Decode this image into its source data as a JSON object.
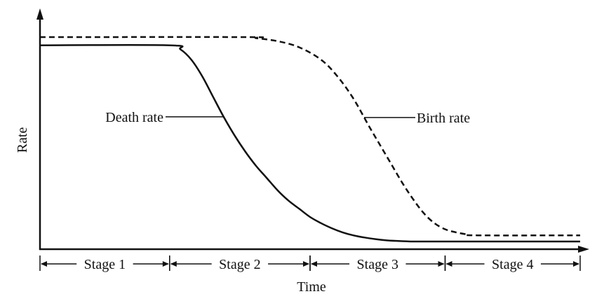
{
  "chart_data": {
    "type": "line",
    "title": "",
    "xlabel": "Time",
    "ylabel": "Rate",
    "xlim": [
      0,
      100
    ],
    "ylim": [
      0,
      100
    ],
    "grid": false,
    "legend": "none",
    "series": [
      {
        "name": "Death rate",
        "style": "solid",
        "color": "#111111",
        "x": [
          0,
          24,
          26,
          28,
          30,
          32,
          34,
          36,
          38,
          40,
          42,
          44,
          46,
          48,
          50,
          52,
          54,
          56,
          58,
          60,
          62,
          64,
          66,
          68,
          70,
          80,
          90,
          100
        ],
        "y": [
          96,
          96,
          94,
          89,
          81,
          71,
          61,
          52,
          44,
          37,
          31,
          25,
          20,
          16,
          12,
          9,
          6.5,
          4.5,
          3,
          2,
          1.2,
          0.6,
          0.3,
          0.1,
          0,
          0,
          0,
          0
        ]
      },
      {
        "name": "Birth rate",
        "style": "dashed",
        "color": "#111111",
        "x": [
          0,
          38,
          40,
          44,
          48,
          52,
          55,
          58,
          61,
          63,
          65,
          67,
          69,
          71,
          73,
          75,
          77,
          79,
          81,
          100
        ],
        "y": [
          100,
          100,
          99.5,
          98,
          95,
          89,
          81,
          70,
          56,
          47,
          38,
          29,
          21,
          14,
          9,
          6,
          4.5,
          3.5,
          3,
          3
        ]
      }
    ],
    "annotations": [
      {
        "text": "Death rate",
        "series": "Death rate",
        "at_x": 34
      },
      {
        "text": "Birth rate",
        "series": "Birth rate",
        "at_x": 60
      }
    ],
    "stages": [
      {
        "label": "Stage 1",
        "x_start": 0,
        "x_end": 24
      },
      {
        "label": "Stage 2",
        "x_start": 24,
        "x_end": 50
      },
      {
        "label": "Stage 3",
        "x_start": 50,
        "x_end": 75
      },
      {
        "label": "Stage 4",
        "x_start": 75,
        "x_end": 100
      }
    ]
  }
}
